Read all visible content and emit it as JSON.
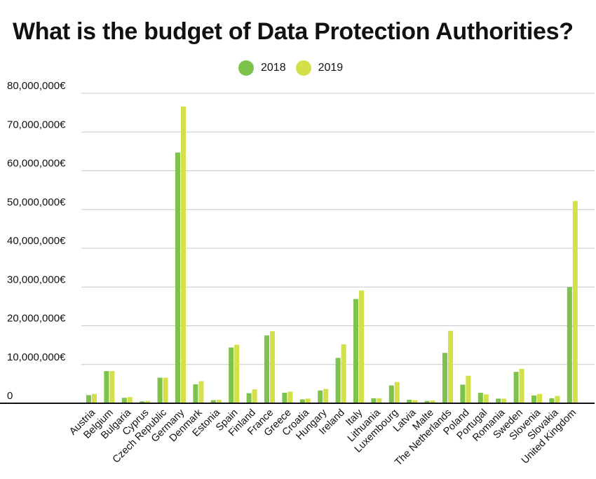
{
  "chart_data": {
    "type": "bar",
    "title": "What is the budget of Data Protection Authorities?",
    "xlabel": "",
    "ylabel": "",
    "ylim": [
      0,
      80000000
    ],
    "yticks": [
      {
        "value": 0,
        "label": "0"
      },
      {
        "value": 10000000,
        "label": "10,000,000€"
      },
      {
        "value": 20000000,
        "label": "20,000,000€"
      },
      {
        "value": 30000000,
        "label": "30,000,000€"
      },
      {
        "value": 40000000,
        "label": "40,000,000€"
      },
      {
        "value": 50000000,
        "label": "50,000,000€"
      },
      {
        "value": 60000000,
        "label": "60,000,000€"
      },
      {
        "value": 70000000,
        "label": "70,000,000€"
      },
      {
        "value": 80000000,
        "label": "80,000,000€"
      }
    ],
    "grid": true,
    "legend_position": "top-center",
    "categories": [
      "Austria",
      "Belgium",
      "Bulgaria",
      "Cyprus",
      "Czech Republic",
      "Germany",
      "Denmark",
      "Estonia",
      "Spain",
      "Finland",
      "France",
      "Greece",
      "Croatia",
      "Hungary",
      "Ireland",
      "Italy",
      "Lithuania",
      "Luxembourg",
      "Latvia",
      "Malte",
      "The Netherlands",
      "Poland",
      "Portugal",
      "Romania",
      "Sweden",
      "Slovenia",
      "Slovakia",
      "United Kingdom"
    ],
    "series": [
      {
        "name": "2018",
        "color": "#7dc24b",
        "values": [
          2100000,
          8300000,
          1400000,
          500000,
          6600000,
          64700000,
          4900000,
          800000,
          14400000,
          2600000,
          17500000,
          2700000,
          1000000,
          3300000,
          11700000,
          26900000,
          1300000,
          4600000,
          900000,
          600000,
          13000000,
          4800000,
          2700000,
          1200000,
          8100000,
          2000000,
          1300000,
          30000000
        ]
      },
      {
        "name": "2019",
        "color": "#d4e04a",
        "values": [
          2400000,
          8300000,
          1600000,
          600000,
          6600000,
          76600000,
          5700000,
          900000,
          15100000,
          3600000,
          18600000,
          3000000,
          1200000,
          3700000,
          15200000,
          29100000,
          1300000,
          5500000,
          800000,
          700000,
          18700000,
          7100000,
          2300000,
          1200000,
          8900000,
          2400000,
          1900000,
          52200000
        ]
      }
    ]
  }
}
